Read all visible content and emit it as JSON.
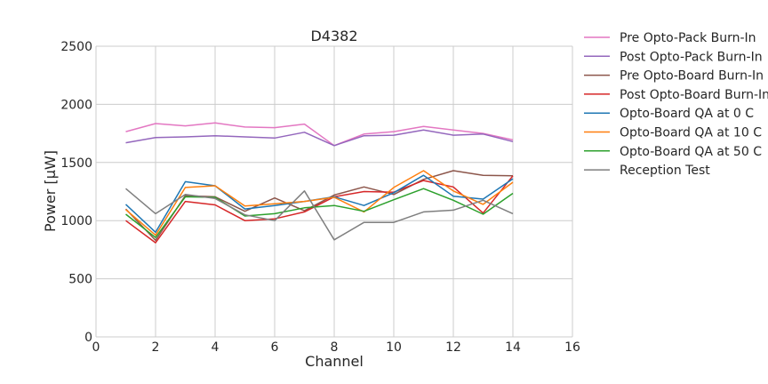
{
  "chart_data": {
    "type": "line",
    "title": "D4382",
    "xlabel": "Channel",
    "ylabel": "Power [μW]",
    "xlim": [
      0,
      16
    ],
    "ylim": [
      0,
      2500
    ],
    "xticks": [
      0,
      2,
      4,
      6,
      8,
      10,
      12,
      14,
      16
    ],
    "yticks": [
      0,
      500,
      1000,
      1500,
      2000,
      2500
    ],
    "grid": true,
    "legend_position": "outside-right",
    "x": [
      1,
      2,
      3,
      4,
      5,
      6,
      7,
      8,
      9,
      10,
      11,
      12,
      13,
      14
    ],
    "series": [
      {
        "name": "Pre Opto-Pack Burn-In",
        "color": "#e377c2",
        "values": [
          1765,
          1835,
          1815,
          1840,
          1805,
          1800,
          1830,
          1645,
          1745,
          1765,
          1810,
          1780,
          1750,
          1695
        ]
      },
      {
        "name": "Post Opto-Pack Burn-In",
        "color": "#9467bd",
        "values": [
          1670,
          1715,
          1720,
          1730,
          1720,
          1710,
          1760,
          1645,
          1730,
          1735,
          1780,
          1735,
          1745,
          1680
        ]
      },
      {
        "name": "Pre Opto-Board Burn-In",
        "color": "#8c564b",
        "values": [
          1100,
          830,
          1215,
          1205,
          1080,
          1195,
          1085,
          1220,
          1290,
          1225,
          1355,
          1430,
          1390,
          1385
        ]
      },
      {
        "name": "Post Opto-Board Burn-In",
        "color": "#d62728",
        "values": [
          1000,
          810,
          1165,
          1135,
          1000,
          1015,
          1075,
          1205,
          1250,
          1245,
          1345,
          1290,
          1065,
          1385
        ]
      },
      {
        "name": "Opto-Board QA at 0 C",
        "color": "#1f77b4",
        "values": [
          1140,
          900,
          1335,
          1300,
          1100,
          1130,
          1165,
          1205,
          1130,
          1240,
          1390,
          1210,
          1185,
          1360
        ]
      },
      {
        "name": "Opto-Board QA at 10 C",
        "color": "#ff7f0e",
        "values": [
          1095,
          875,
          1285,
          1300,
          1125,
          1145,
          1165,
          1200,
          1075,
          1285,
          1430,
          1255,
          1140,
          1330
        ]
      },
      {
        "name": "Opto-Board QA at 50 C",
        "color": "#2ca02c",
        "values": [
          1055,
          855,
          1205,
          1200,
          1040,
          1060,
          1110,
          1130,
          1080,
          1180,
          1275,
          1175,
          1055,
          1235
        ]
      },
      {
        "name": "Reception Test",
        "color": "#7f7f7f",
        "values": [
          1275,
          1060,
          1225,
          1190,
          1050,
          1000,
          1255,
          835,
          985,
          985,
          1075,
          1090,
          1175,
          1060
        ]
      }
    ]
  }
}
